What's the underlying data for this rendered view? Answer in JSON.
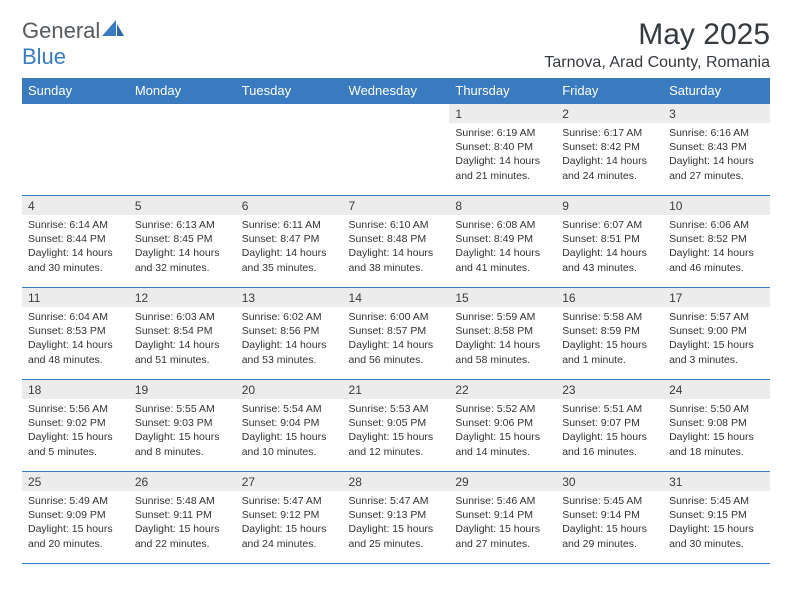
{
  "brand": {
    "part1": "General",
    "part2": "Blue"
  },
  "title": "May 2025",
  "location": "Tarnova, Arad County, Romania",
  "days_of_week": [
    "Sunday",
    "Monday",
    "Tuesday",
    "Wednesday",
    "Thursday",
    "Friday",
    "Saturday"
  ],
  "colors": {
    "header_bg": "#3a7bbf",
    "header_text": "#ffffff",
    "daynum_bg": "#ececec",
    "border": "#3a7bbf",
    "body_text": "#333333",
    "title_text": "#353a3f"
  },
  "fonts": {
    "title_size_pt": 30,
    "location_size_pt": 16,
    "th_size_pt": 13,
    "cell_size_pt": 10.5
  },
  "weeks": [
    [
      {
        "day": "",
        "sunrise": "",
        "sunset": "",
        "daylight": "",
        "empty": true
      },
      {
        "day": "",
        "sunrise": "",
        "sunset": "",
        "daylight": "",
        "empty": true
      },
      {
        "day": "",
        "sunrise": "",
        "sunset": "",
        "daylight": "",
        "empty": true
      },
      {
        "day": "",
        "sunrise": "",
        "sunset": "",
        "daylight": "",
        "empty": true
      },
      {
        "day": "1",
        "sunrise": "Sunrise: 6:19 AM",
        "sunset": "Sunset: 8:40 PM",
        "daylight": "Daylight: 14 hours and 21 minutes."
      },
      {
        "day": "2",
        "sunrise": "Sunrise: 6:17 AM",
        "sunset": "Sunset: 8:42 PM",
        "daylight": "Daylight: 14 hours and 24 minutes."
      },
      {
        "day": "3",
        "sunrise": "Sunrise: 6:16 AM",
        "sunset": "Sunset: 8:43 PM",
        "daylight": "Daylight: 14 hours and 27 minutes."
      }
    ],
    [
      {
        "day": "4",
        "sunrise": "Sunrise: 6:14 AM",
        "sunset": "Sunset: 8:44 PM",
        "daylight": "Daylight: 14 hours and 30 minutes."
      },
      {
        "day": "5",
        "sunrise": "Sunrise: 6:13 AM",
        "sunset": "Sunset: 8:45 PM",
        "daylight": "Daylight: 14 hours and 32 minutes."
      },
      {
        "day": "6",
        "sunrise": "Sunrise: 6:11 AM",
        "sunset": "Sunset: 8:47 PM",
        "daylight": "Daylight: 14 hours and 35 minutes."
      },
      {
        "day": "7",
        "sunrise": "Sunrise: 6:10 AM",
        "sunset": "Sunset: 8:48 PM",
        "daylight": "Daylight: 14 hours and 38 minutes."
      },
      {
        "day": "8",
        "sunrise": "Sunrise: 6:08 AM",
        "sunset": "Sunset: 8:49 PM",
        "daylight": "Daylight: 14 hours and 41 minutes."
      },
      {
        "day": "9",
        "sunrise": "Sunrise: 6:07 AM",
        "sunset": "Sunset: 8:51 PM",
        "daylight": "Daylight: 14 hours and 43 minutes."
      },
      {
        "day": "10",
        "sunrise": "Sunrise: 6:06 AM",
        "sunset": "Sunset: 8:52 PM",
        "daylight": "Daylight: 14 hours and 46 minutes."
      }
    ],
    [
      {
        "day": "11",
        "sunrise": "Sunrise: 6:04 AM",
        "sunset": "Sunset: 8:53 PM",
        "daylight": "Daylight: 14 hours and 48 minutes."
      },
      {
        "day": "12",
        "sunrise": "Sunrise: 6:03 AM",
        "sunset": "Sunset: 8:54 PM",
        "daylight": "Daylight: 14 hours and 51 minutes."
      },
      {
        "day": "13",
        "sunrise": "Sunrise: 6:02 AM",
        "sunset": "Sunset: 8:56 PM",
        "daylight": "Daylight: 14 hours and 53 minutes."
      },
      {
        "day": "14",
        "sunrise": "Sunrise: 6:00 AM",
        "sunset": "Sunset: 8:57 PM",
        "daylight": "Daylight: 14 hours and 56 minutes."
      },
      {
        "day": "15",
        "sunrise": "Sunrise: 5:59 AM",
        "sunset": "Sunset: 8:58 PM",
        "daylight": "Daylight: 14 hours and 58 minutes."
      },
      {
        "day": "16",
        "sunrise": "Sunrise: 5:58 AM",
        "sunset": "Sunset: 8:59 PM",
        "daylight": "Daylight: 15 hours and 1 minute."
      },
      {
        "day": "17",
        "sunrise": "Sunrise: 5:57 AM",
        "sunset": "Sunset: 9:00 PM",
        "daylight": "Daylight: 15 hours and 3 minutes."
      }
    ],
    [
      {
        "day": "18",
        "sunrise": "Sunrise: 5:56 AM",
        "sunset": "Sunset: 9:02 PM",
        "daylight": "Daylight: 15 hours and 5 minutes."
      },
      {
        "day": "19",
        "sunrise": "Sunrise: 5:55 AM",
        "sunset": "Sunset: 9:03 PM",
        "daylight": "Daylight: 15 hours and 8 minutes."
      },
      {
        "day": "20",
        "sunrise": "Sunrise: 5:54 AM",
        "sunset": "Sunset: 9:04 PM",
        "daylight": "Daylight: 15 hours and 10 minutes."
      },
      {
        "day": "21",
        "sunrise": "Sunrise: 5:53 AM",
        "sunset": "Sunset: 9:05 PM",
        "daylight": "Daylight: 15 hours and 12 minutes."
      },
      {
        "day": "22",
        "sunrise": "Sunrise: 5:52 AM",
        "sunset": "Sunset: 9:06 PM",
        "daylight": "Daylight: 15 hours and 14 minutes."
      },
      {
        "day": "23",
        "sunrise": "Sunrise: 5:51 AM",
        "sunset": "Sunset: 9:07 PM",
        "daylight": "Daylight: 15 hours and 16 minutes."
      },
      {
        "day": "24",
        "sunrise": "Sunrise: 5:50 AM",
        "sunset": "Sunset: 9:08 PM",
        "daylight": "Daylight: 15 hours and 18 minutes."
      }
    ],
    [
      {
        "day": "25",
        "sunrise": "Sunrise: 5:49 AM",
        "sunset": "Sunset: 9:09 PM",
        "daylight": "Daylight: 15 hours and 20 minutes."
      },
      {
        "day": "26",
        "sunrise": "Sunrise: 5:48 AM",
        "sunset": "Sunset: 9:11 PM",
        "daylight": "Daylight: 15 hours and 22 minutes."
      },
      {
        "day": "27",
        "sunrise": "Sunrise: 5:47 AM",
        "sunset": "Sunset: 9:12 PM",
        "daylight": "Daylight: 15 hours and 24 minutes."
      },
      {
        "day": "28",
        "sunrise": "Sunrise: 5:47 AM",
        "sunset": "Sunset: 9:13 PM",
        "daylight": "Daylight: 15 hours and 25 minutes."
      },
      {
        "day": "29",
        "sunrise": "Sunrise: 5:46 AM",
        "sunset": "Sunset: 9:14 PM",
        "daylight": "Daylight: 15 hours and 27 minutes."
      },
      {
        "day": "30",
        "sunrise": "Sunrise: 5:45 AM",
        "sunset": "Sunset: 9:14 PM",
        "daylight": "Daylight: 15 hours and 29 minutes."
      },
      {
        "day": "31",
        "sunrise": "Sunrise: 5:45 AM",
        "sunset": "Sunset: 9:15 PM",
        "daylight": "Daylight: 15 hours and 30 minutes."
      }
    ]
  ]
}
